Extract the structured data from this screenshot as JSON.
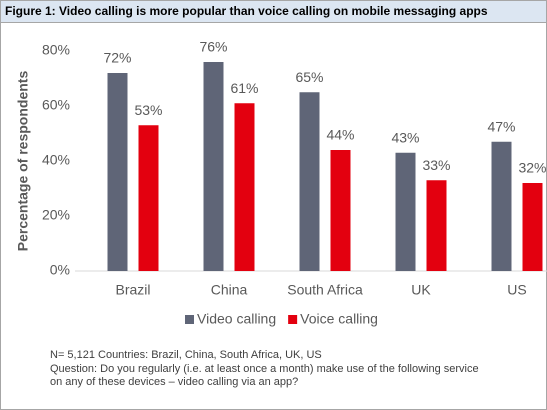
{
  "chart_data": {
    "type": "bar",
    "title": "Figure 1: Video calling is more popular than voice calling on mobile messaging apps",
    "y_label": "Percentage of respondents",
    "categories": [
      "Brazil",
      "China",
      "South Africa",
      "UK",
      "US"
    ],
    "series": [
      {
        "name": "Video calling",
        "color": "#5f6577",
        "values": [
          72,
          76,
          65,
          43,
          47
        ],
        "value_labels": [
          "72%",
          "76%",
          "65%",
          "43%",
          "47%"
        ]
      },
      {
        "name": "Voice calling",
        "color": "#e3000f",
        "values": [
          53,
          61,
          44,
          33,
          32
        ],
        "value_labels": [
          "53%",
          "61%",
          "44%",
          "33%",
          "32%"
        ]
      }
    ],
    "ylim": [
      0,
      80
    ],
    "yticks": [
      {
        "value": 0,
        "label": "0%"
      },
      {
        "value": 20,
        "label": "20%"
      },
      {
        "value": 40,
        "label": "40%"
      },
      {
        "value": 60,
        "label": "60%"
      },
      {
        "value": 80,
        "label": "80%"
      }
    ],
    "grid": false,
    "legend": "bottom"
  },
  "notes": [
    "N= 5,121 Countries: Brazil, China, South Africa, UK, US",
    "Question: Do you regularly (i.e. at least once a month) make use of the following service",
    "on any of these devices – video calling via an app?"
  ]
}
